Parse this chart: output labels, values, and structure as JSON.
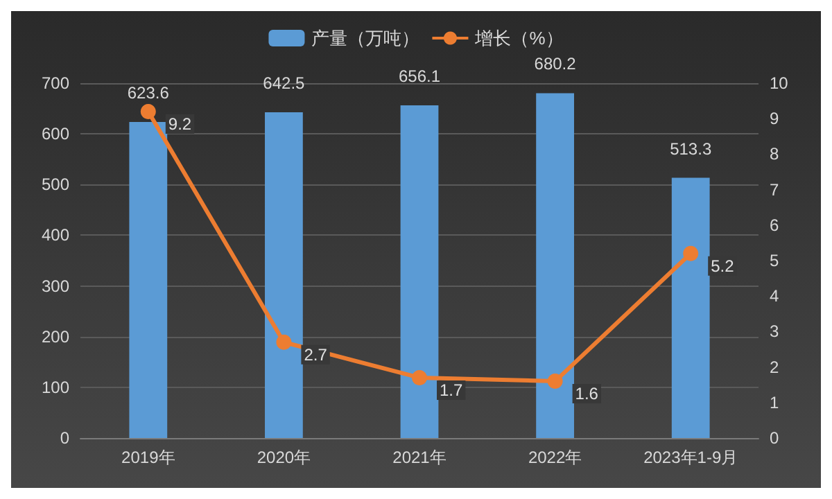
{
  "chart_data": {
    "type": "bar",
    "categories": [
      "2019年",
      "2020年",
      "2021年",
      "2022年",
      "2023年1-9月"
    ],
    "series": [
      {
        "name": "产量（万吨）",
        "color": "#5b9bd5",
        "values": [
          623.6,
          642.5,
          656.1,
          680.2,
          513.3
        ]
      },
      {
        "name": "增长（%）",
        "type": "line",
        "axis": "y2",
        "color": "#ed7d31",
        "values": [
          9.2,
          2.7,
          1.7,
          1.6,
          5.2
        ]
      }
    ],
    "ylim": [
      0,
      700
    ],
    "yticks": [
      0,
      100,
      200,
      300,
      400,
      500,
      600,
      700
    ],
    "y2lim": [
      0,
      10
    ],
    "y2ticks": [
      0,
      1,
      2,
      3,
      4,
      5,
      6,
      7,
      8,
      9,
      10
    ],
    "grid": "y",
    "legend": "top",
    "marker": "circle",
    "line_style": "solid",
    "data_labels": true
  }
}
